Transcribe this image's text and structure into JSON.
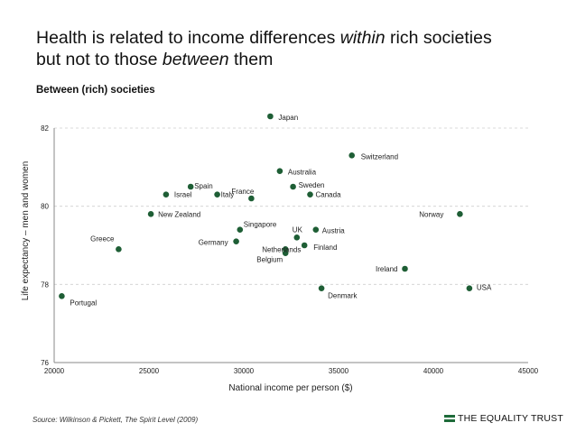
{
  "headline": {
    "line1_before": "Health is related to income differences ",
    "line1_emph": "within",
    "line1_after": " rich societies",
    "line2_before": "but not to those ",
    "line2_emph": "between",
    "line2_after": " them"
  },
  "source": "Source: Wilkinson & Pickett, The Spirit Level (2009)",
  "brand": "THE EQUALITY TRUST",
  "colors": {
    "point": "#1e5e35",
    "grid": "#cfcfcf",
    "brand": "#1e6b3a"
  },
  "chart_data": {
    "type": "scatter",
    "title": "Between (rich) societies",
    "xlabel": "National income per person ($)",
    "ylabel": "Life expectancy – men and women",
    "xlim": [
      20000,
      45000
    ],
    "ylim": [
      76,
      82
    ],
    "xticks": [
      20000,
      25000,
      30000,
      35000,
      40000,
      45000
    ],
    "yticks": [
      76,
      78,
      80,
      82
    ],
    "grid": "horizontal dashed",
    "points": [
      {
        "label": "Japan",
        "x": 31400,
        "y": 82.3
      },
      {
        "label": "Switzerland",
        "x": 35700,
        "y": 81.3
      },
      {
        "label": "Australia",
        "x": 31900,
        "y": 80.9
      },
      {
        "label": "Sweden",
        "x": 32600,
        "y": 80.5
      },
      {
        "label": "Canada",
        "x": 33500,
        "y": 80.3
      },
      {
        "label": "Spain",
        "x": 27200,
        "y": 80.5
      },
      {
        "label": "Israel",
        "x": 25900,
        "y": 80.3
      },
      {
        "label": "Italy",
        "x": 28600,
        "y": 80.3
      },
      {
        "label": "France",
        "x": 30400,
        "y": 80.2
      },
      {
        "label": "New Zealand",
        "x": 25100,
        "y": 79.8
      },
      {
        "label": "Norway",
        "x": 41400,
        "y": 79.8
      },
      {
        "label": "Singapore",
        "x": 29800,
        "y": 79.4
      },
      {
        "label": "Austria",
        "x": 33800,
        "y": 79.4
      },
      {
        "label": "UK",
        "x": 32800,
        "y": 79.2
      },
      {
        "label": "Germany",
        "x": 29600,
        "y": 79.1
      },
      {
        "label": "Netherlands",
        "x": 32200,
        "y": 78.9
      },
      {
        "label": "Finland",
        "x": 33200,
        "y": 79.0
      },
      {
        "label": "Belgium",
        "x": 32200,
        "y": 78.8
      },
      {
        "label": "Greece",
        "x": 23400,
        "y": 78.9
      },
      {
        "label": "Ireland",
        "x": 38500,
        "y": 78.4
      },
      {
        "label": "Denmark",
        "x": 34100,
        "y": 77.9
      },
      {
        "label": "USA",
        "x": 41900,
        "y": 77.9
      },
      {
        "label": "Portugal",
        "x": 20400,
        "y": 77.7
      }
    ]
  }
}
